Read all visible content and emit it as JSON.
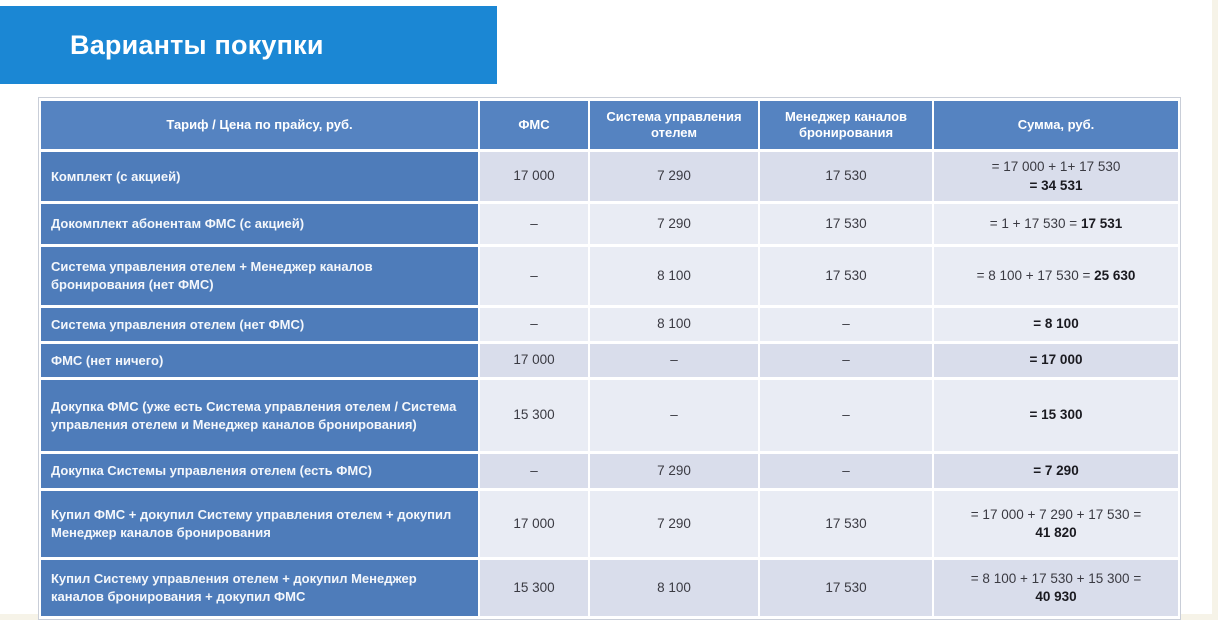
{
  "slide": {
    "title": "Варианты покупки"
  },
  "colors": {
    "banner": "#1b87d4",
    "header_bg": "#5583c1",
    "row_header_bg": "#4e7cba",
    "row_light": "#e9ecf4",
    "row_dark": "#d9ddeb",
    "cell_text": "#3a3a42",
    "sum_bold_text": "#1a1a20",
    "table_border": "#c9ced8",
    "title_text": "#ffffff"
  },
  "table": {
    "columns": {
      "tariff": "Тариф / Цена по прайсу,  руб.",
      "fms": "ФМС",
      "pms": "Система управления отелем",
      "channel": "Менеджер каналов бронирования",
      "sum": "Сумма, руб."
    },
    "rows": [
      {
        "tariff": "Комплект (с акцией)",
        "fms": "17 000",
        "pms": "7 290",
        "channel": "17 530",
        "sum_plain": "= 17 000 + 1+ 17 530",
        "sum_bold": "= 34 531",
        "sum_break": true
      },
      {
        "tariff": "Докомплект абонентам ФМС (с акцией)",
        "fms": "–",
        "pms": "7 290",
        "channel": "17 530",
        "sum_plain": "= 1 + 17 530 = ",
        "sum_bold": "17 531",
        "sum_break": false
      },
      {
        "tariff": "Система управления отелем + Менеджер каналов бронирования  (нет ФМС)",
        "fms": "–",
        "pms": "8 100",
        "channel": "17 530",
        "sum_plain": "= 8 100 + 17 530 = ",
        "sum_bold": "25 630",
        "sum_break": false
      },
      {
        "tariff": "Система управления отелем (нет ФМС)",
        "fms": "–",
        "pms": "8 100",
        "channel": "–",
        "sum_plain": "",
        "sum_bold": "= 8 100",
        "sum_break": false
      },
      {
        "tariff": "ФМС (нет ничего)",
        "fms": "17 000",
        "pms": "–",
        "channel": "–",
        "sum_plain": "",
        "sum_bold": "= 17 000",
        "sum_break": false
      },
      {
        "tariff": "Докупка  ФМС (уже есть Система управления отелем / Система управления отелем и Менеджер каналов  бронирования)",
        "fms": "15 300",
        "pms": "–",
        "channel": "–",
        "sum_plain": "",
        "sum_bold": "= 15 300",
        "sum_break": false
      },
      {
        "tariff": "Докупка  Системы управления  отелем (есть ФМС)",
        "fms": "–",
        "pms": "7 290",
        "channel": "–",
        "sum_plain": "",
        "sum_bold": "= 7 290",
        "sum_break": false
      },
      {
        "tariff": "Купил ФМС + докупил Систему управления  отелем + докупил Менеджер каналов  бронирования",
        "fms": "17 000",
        "pms": "7 290",
        "channel": "17 530",
        "sum_plain": "= 17 000 + 7 290 + 17 530 =",
        "sum_bold": "41 820",
        "sum_break": true
      },
      {
        "tariff": "Купил Систему управления  отелем + докупил Менеджер каналов  бронирования  + докупил ФМС",
        "fms": "15 300",
        "pms": "8 100",
        "channel": "17 530",
        "sum_plain": "= 8 100 + 17 530 + 15 300  =",
        "sum_bold": "40 930",
        "sum_break": true
      }
    ]
  }
}
